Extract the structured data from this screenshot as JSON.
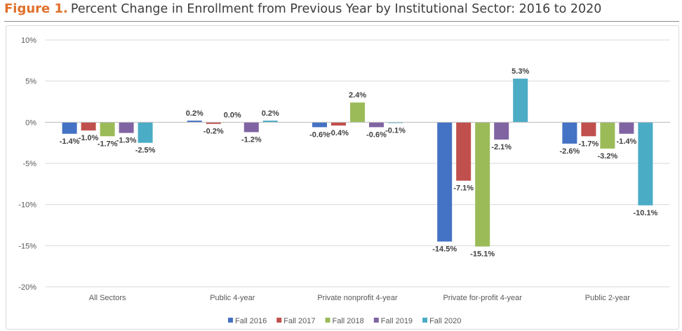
{
  "figure": {
    "label": "Figure 1.",
    "title": "Percent Change in Enrollment from Previous Year by Institutional Sector: 2016 to 2020"
  },
  "chart_data": {
    "type": "bar",
    "categories": [
      "All Sectors",
      "Public 4-year",
      "Private nonprofit 4-year",
      "Private for-profit 4-year",
      "Public 2-year"
    ],
    "yticks": [
      "10%",
      "5%",
      "0%",
      "-5%",
      "-10%",
      "-15%",
      "-20%"
    ],
    "ylim": [
      -20,
      10
    ],
    "grid": true,
    "legend_position": "bottom",
    "series": [
      {
        "name": "Fall 2016",
        "color": "#4472c4",
        "values": [
          -1.4,
          0.2,
          -0.6,
          -14.5,
          -2.6
        ],
        "labels": [
          "-1.4%",
          "0.2%",
          "-0.6%",
          "-14.5%",
          "-2.6%"
        ]
      },
      {
        "name": "Fall 2017",
        "color": "#c0504d",
        "values": [
          -1.0,
          -0.2,
          -0.4,
          -7.1,
          -1.7
        ],
        "labels": [
          "-1.0%",
          "-0.2%",
          "-0.4%",
          "-7.1%",
          "-1.7%"
        ]
      },
      {
        "name": "Fall 2018",
        "color": "#9bbb59",
        "values": [
          -1.7,
          0.0,
          2.4,
          -15.1,
          -3.2
        ],
        "labels": [
          "-1.7%",
          "0.0%",
          "2.4%",
          "-15.1%",
          "-3.2%"
        ]
      },
      {
        "name": "Fall 2019",
        "color": "#8064a2",
        "values": [
          -1.3,
          -1.2,
          -0.6,
          -2.1,
          -1.4
        ],
        "labels": [
          "-1.3%",
          "-1.2%",
          "-0.6%",
          "-2.1%",
          "-1.4%"
        ]
      },
      {
        "name": "Fall 2020",
        "color": "#4bacc6",
        "values": [
          -2.5,
          0.2,
          -0.1,
          5.3,
          -10.1
        ],
        "labels": [
          "-2.5%",
          "0.2%",
          "-0.1%",
          "5.3%",
          "-10.1%"
        ]
      }
    ]
  }
}
